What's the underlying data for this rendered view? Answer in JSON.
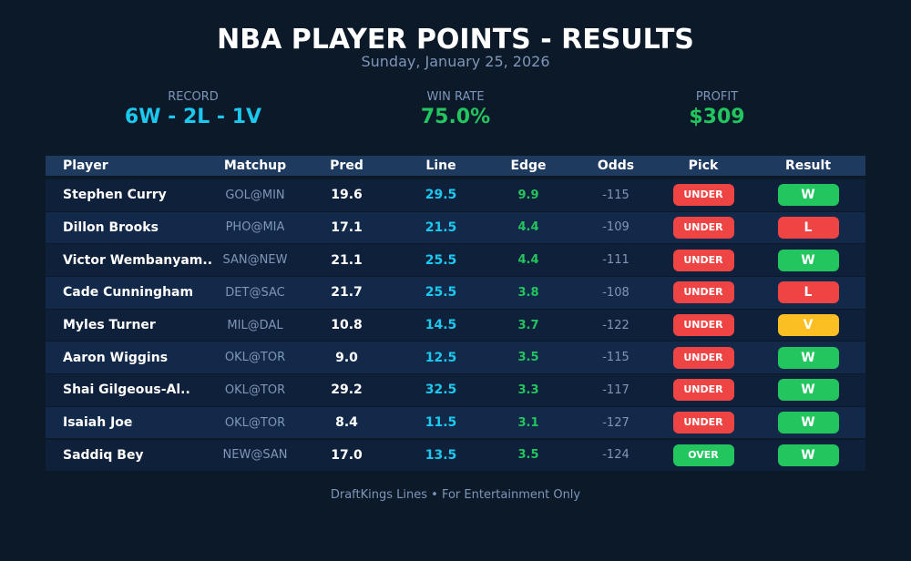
{
  "header": {
    "title": "NBA PLAYER POINTS - RESULTS",
    "date": "Sunday, January 25, 2026"
  },
  "stats": [
    {
      "label": "RECORD",
      "value": "6W - 2L - 1V",
      "color": "#1cc8ee"
    },
    {
      "label": "WIN RATE",
      "value": "75.0%",
      "color": "#22c55e"
    },
    {
      "label": "PROFIT",
      "value": "$309",
      "color": "#22c55e"
    }
  ],
  "columns": [
    "Player",
    "Matchup",
    "Pred",
    "Line",
    "Edge",
    "Odds",
    "Pick",
    "Result"
  ],
  "rows": [
    {
      "player": "Stephen Curry",
      "matchup": "GOL@MIN",
      "pred": "19.6",
      "line": "29.5",
      "edge": "9.9",
      "odds": "-115",
      "pick": "UNDER",
      "result": "W"
    },
    {
      "player": "Dillon Brooks",
      "matchup": "PHO@MIA",
      "pred": "17.1",
      "line": "21.5",
      "edge": "4.4",
      "odds": "-109",
      "pick": "UNDER",
      "result": "L"
    },
    {
      "player": "Victor Wembanyam..",
      "matchup": "SAN@NEW",
      "pred": "21.1",
      "line": "25.5",
      "edge": "4.4",
      "odds": "-111",
      "pick": "UNDER",
      "result": "W"
    },
    {
      "player": "Cade Cunningham",
      "matchup": "DET@SAC",
      "pred": "21.7",
      "line": "25.5",
      "edge": "3.8",
      "odds": "-108",
      "pick": "UNDER",
      "result": "L"
    },
    {
      "player": "Myles Turner",
      "matchup": "MIL@DAL",
      "pred": "10.8",
      "line": "14.5",
      "edge": "3.7",
      "odds": "-122",
      "pick": "UNDER",
      "result": "V"
    },
    {
      "player": "Aaron Wiggins",
      "matchup": "OKL@TOR",
      "pred": "9.0",
      "line": "12.5",
      "edge": "3.5",
      "odds": "-115",
      "pick": "UNDER",
      "result": "W"
    },
    {
      "player": "Shai Gilgeous-Al..",
      "matchup": "OKL@TOR",
      "pred": "29.2",
      "line": "32.5",
      "edge": "3.3",
      "odds": "-117",
      "pick": "UNDER",
      "result": "W"
    },
    {
      "player": "Isaiah Joe",
      "matchup": "OKL@TOR",
      "pred": "8.4",
      "line": "11.5",
      "edge": "3.1",
      "odds": "-127",
      "pick": "UNDER",
      "result": "W"
    },
    {
      "player": "Saddiq Bey",
      "matchup": "NEW@SAN",
      "pred": "17.0",
      "line": "13.5",
      "edge": "3.5",
      "odds": "-124",
      "pick": "OVER",
      "result": "W"
    }
  ],
  "colors": {
    "W": "#22c55e",
    "L": "#ef4444",
    "V": "#fbbf24",
    "UNDER": "#ef4444",
    "OVER": "#22c55e"
  },
  "footer": "DraftKings Lines • For Entertainment Only"
}
